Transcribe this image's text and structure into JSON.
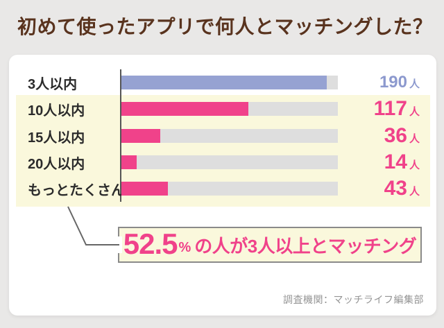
{
  "title": "初めて使ったアプリで何人とマッチングした？",
  "source_note": "調査機関：マッチライフ編集部",
  "callout": {
    "percent_value": "52.5",
    "percent_sign": "%",
    "text": "の人が3人以上とマッチング"
  },
  "chart_data": {
    "type": "bar",
    "orientation": "horizontal",
    "title": "初めて使ったアプリで何人とマッチングした？",
    "categories": [
      "3人以内",
      "10人以内",
      "15人以内",
      "20人以内",
      "もっとたくさん"
    ],
    "values": [
      190,
      117,
      36,
      14,
      43
    ],
    "unit": "人",
    "xlim": [
      0,
      200
    ],
    "grid": false,
    "legend": false,
    "annotation": "52.5%の人が3人以上とマッチング",
    "highlighted_rows": [
      "10人以内",
      "15人以内",
      "20人以内",
      "もっとたくさん"
    ]
  },
  "colors": {
    "page_background": "#E9E8E7",
    "card_background": "#FFFFFF",
    "row_highlight_background": "#FAF8DC",
    "title_text": "#59331E",
    "bar_blue": "#96A2D2",
    "bar_pink": "#F0428A",
    "number_blue": "#8C99CE",
    "number_pink": "#F0428A",
    "bar_track": "#DEDEDE",
    "axis_line": "#555555",
    "connector_line": "#666666",
    "callout_border": "#8A8A8A",
    "source_text": "#949494",
    "label_text": "#2B2B2B"
  }
}
